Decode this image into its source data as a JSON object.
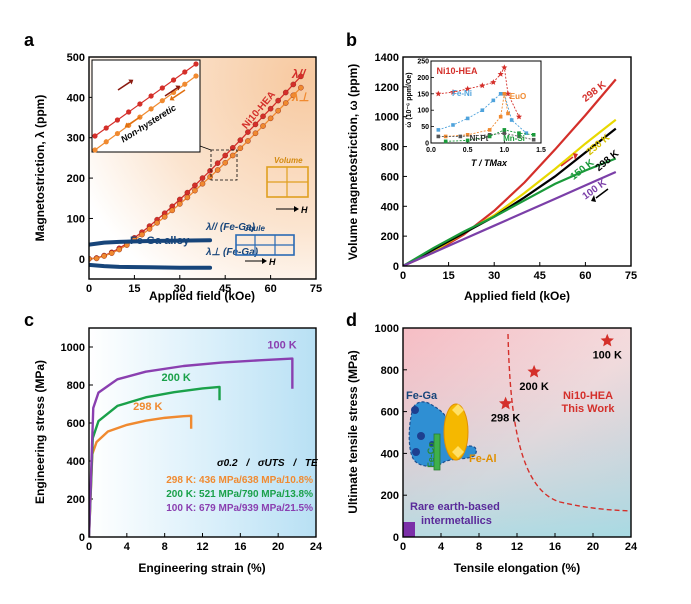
{
  "panels": {
    "a": "a",
    "b": "b",
    "c": "c",
    "d": "d"
  },
  "chart_data": [
    {
      "panel": "a",
      "type": "scatter",
      "xlabel": "Applied field (kOe)",
      "ylabel": "Magnetostriction, λ (ppm)",
      "xlim": [
        0,
        75
      ],
      "ylim": [
        -50,
        500
      ],
      "xticks": [
        "0",
        "15",
        "30",
        "45",
        "60",
        "75"
      ],
      "yticks": [
        "0",
        "100",
        "200",
        "300",
        "400",
        "500"
      ],
      "material_label": "Ni10-HEA",
      "ref_label": "Fe-Ga alloy",
      "inset_label": "Non-hysteretic",
      "volume_label": "Volume",
      "joule_label": "Joule",
      "field_label": "H",
      "series": [
        {
          "name": "λ//",
          "color": "#d42f2a",
          "x": [
            0,
            2.5,
            5,
            7.5,
            10,
            12.5,
            15,
            17.5,
            20,
            22.5,
            25,
            27.5,
            30,
            32.5,
            35,
            37.5,
            40,
            42.5,
            45,
            47.5,
            50,
            52.5,
            55,
            57.5,
            60,
            62.5,
            65,
            67.5,
            70
          ],
          "y": [
            0,
            2,
            8,
            16,
            26,
            38,
            52,
            66,
            81,
            97,
            113,
            130,
            147,
            164,
            182,
            200,
            218,
            237,
            256,
            275,
            294,
            314,
            333,
            353,
            372,
            392,
            412,
            432,
            452
          ]
        },
        {
          "name": "λ⊥",
          "color": "#f08a30",
          "x": [
            0,
            2.5,
            5,
            7.5,
            10,
            12.5,
            15,
            17.5,
            20,
            22.5,
            25,
            27.5,
            30,
            32.5,
            35,
            37.5,
            40,
            42.5,
            45,
            47.5,
            50,
            52.5,
            55,
            57.5,
            60,
            62.5,
            65,
            67.5,
            70
          ],
          "y": [
            0,
            1,
            7,
            14,
            23,
            34,
            47,
            60,
            74,
            89,
            104,
            120,
            136,
            152,
            169,
            186,
            203,
            220,
            238,
            256,
            274,
            292,
            311,
            329,
            348,
            367,
            386,
            405,
            424
          ]
        },
        {
          "name": "λ// (Fe-Ga)",
          "color": "#17457a",
          "x": [
            0,
            5,
            10,
            20,
            30,
            40
          ],
          "y": [
            35,
            40,
            42,
            44,
            45,
            46
          ]
        },
        {
          "name": "λ⊥ (Fe-Ga)",
          "color": "#17457a",
          "x": [
            0,
            5,
            10,
            20,
            30,
            40
          ],
          "y": [
            -15,
            -18,
            -20,
            -21,
            -22,
            -22
          ]
        }
      ]
    },
    {
      "panel": "b",
      "type": "line",
      "xlabel": "Applied field (kOe)",
      "ylabel": "Volume magnetostriction, ω (ppm)",
      "xlim": [
        0,
        75
      ],
      "ylim": [
        0,
        1400
      ],
      "xticks": [
        "0",
        "15",
        "30",
        "45",
        "60",
        "75"
      ],
      "yticks": [
        "0",
        "200",
        "400",
        "600",
        "800",
        "1000",
        "1200",
        "1400"
      ],
      "series": [
        {
          "name": "298 K",
          "label_color": "#d42f2a",
          "color": "#d42f2a",
          "x": [
            0,
            10,
            20,
            30,
            40,
            50,
            60,
            70
          ],
          "y": [
            0,
            90,
            210,
            370,
            560,
            780,
            1010,
            1250
          ]
        },
        {
          "name": "250 K",
          "label_color": "#d6c000",
          "color": "#e8d800",
          "x": [
            0,
            10,
            20,
            30,
            40,
            50,
            60,
            70
          ],
          "y": [
            0,
            100,
            220,
            340,
            490,
            650,
            820,
            980
          ]
        },
        {
          "name": "298 K",
          "label_color": "#000000",
          "color": "#000000",
          "x": [
            0,
            10,
            20,
            30,
            40,
            50,
            60,
            70
          ],
          "y": [
            0,
            110,
            220,
            330,
            460,
            600,
            760,
            920
          ]
        },
        {
          "name": "150 K",
          "label_color": "#1a9a3a",
          "color": "#1a9a3a",
          "x": [
            0,
            10,
            20,
            30,
            40,
            50,
            60,
            70
          ],
          "y": [
            0,
            120,
            230,
            330,
            440,
            550,
            640,
            720
          ]
        },
        {
          "name": "100 K",
          "label_color": "#7b3fa8",
          "color": "#7b3fa8",
          "x": [
            0,
            10,
            20,
            30,
            40,
            50,
            60,
            70
          ],
          "y": [
            0,
            90,
            180,
            270,
            360,
            450,
            540,
            630
          ]
        }
      ],
      "inset": {
        "xlabel": "T / TMax",
        "ylabel": "ώ (10⁻⁶ ppm/Oe)",
        "xticks": [
          "0.0",
          "0.5",
          "1.0",
          "1.5"
        ],
        "yticks": [
          "0",
          "50",
          "100",
          "150",
          "200",
          "250"
        ],
        "xlim": [
          0,
          1.5
        ],
        "ylim": [
          0,
          250
        ],
        "series": [
          {
            "name": "Ni10-HEA",
            "color": "#d42f2a",
            "x": [
              0.1,
              0.3,
              0.5,
              0.7,
              0.85,
              0.95,
              1.0,
              1.05,
              1.2
            ],
            "y": [
              150,
              155,
              165,
              175,
              185,
              210,
              230,
              150,
              80
            ]
          },
          {
            "name": "Fe-Ni",
            "color": "#4fa3dc",
            "x": [
              0.1,
              0.3,
              0.5,
              0.7,
              0.85,
              0.95,
              1.0,
              1.1,
              1.3
            ],
            "y": [
              40,
              55,
              75,
              100,
              130,
              150,
              150,
              70,
              30
            ]
          },
          {
            "name": "EuO",
            "color": "#f08a30",
            "x": [
              0.2,
              0.5,
              0.8,
              0.95,
              1.0,
              1.05
            ],
            "y": [
              20,
              25,
              40,
              80,
              150,
              90
            ]
          },
          {
            "name": "Ni-Pt",
            "color": "#555555",
            "x": [
              0.1,
              0.4,
              0.8,
              1.0,
              1.2,
              1.4
            ],
            "y": [
              20,
              20,
              25,
              30,
              20,
              10
            ]
          },
          {
            "name": "Mn-Si",
            "color": "#1a9a3a",
            "x": [
              0.2,
              0.5,
              0.8,
              1.0,
              1.2,
              1.4
            ],
            "y": [
              5,
              8,
              20,
              40,
              30,
              25
            ]
          }
        ]
      }
    },
    {
      "panel": "c",
      "type": "line",
      "xlabel": "Engineering strain (%)",
      "ylabel": "Engineering stress (MPa)",
      "xlim": [
        0,
        24
      ],
      "ylim": [
        0,
        1100
      ],
      "xticks": [
        "0",
        "4",
        "8",
        "12",
        "16",
        "20",
        "24"
      ],
      "yticks": [
        "0",
        "200",
        "400",
        "600",
        "800",
        "1000"
      ],
      "legend_header": {
        "a": "σ0.2",
        "sep1": "/",
        "b": "σUTS",
        "sep2": "/",
        "c": "TE"
      },
      "series": [
        {
          "name": "298 K",
          "color": "#f08a30",
          "summary": "298 K: 436 MPa/638 MPa/10.8%",
          "x": [
            0,
            0.35,
            0.8,
            2,
            4,
            6,
            8,
            10,
            10.8,
            10.8
          ],
          "y": [
            0,
            436,
            500,
            555,
            590,
            612,
            627,
            636,
            638,
            570
          ]
        },
        {
          "name": "200 K",
          "color": "#1aa14a",
          "summary": "200 K: 521 MPa/790 MPa/13.8%",
          "x": [
            0,
            0.4,
            1,
            3,
            6,
            9,
            12,
            13.8,
            13.8
          ],
          "y": [
            0,
            521,
            610,
            690,
            735,
            762,
            782,
            790,
            720
          ]
        },
        {
          "name": "100 K",
          "color": "#8a3fb0",
          "summary": "100 K: 679 MPa/939 MPa/21.5%",
          "x": [
            0,
            0.45,
            1,
            3,
            6,
            10,
            14,
            18,
            21,
            21.5,
            21.5
          ],
          "y": [
            0,
            679,
            760,
            830,
            870,
            900,
            918,
            930,
            938,
            939,
            780
          ]
        }
      ]
    },
    {
      "panel": "d",
      "type": "scatter",
      "xlabel": "Tensile elongation (%)",
      "ylabel": "Ultimate tensile stress (MPa)",
      "xlim": [
        0,
        24
      ],
      "ylim": [
        0,
        1000
      ],
      "xticks": [
        "0",
        "4",
        "8",
        "12",
        "16",
        "20",
        "24"
      ],
      "yticks": [
        "0",
        "200",
        "400",
        "600",
        "800",
        "1000"
      ],
      "points": [
        {
          "label": "298 K",
          "x": 10.8,
          "y": 638,
          "color": "#d42f2a"
        },
        {
          "label": "200 K",
          "x": 13.8,
          "y": 790,
          "color": "#d42f2a"
        },
        {
          "label": "100 K",
          "x": 21.5,
          "y": 939,
          "color": "#d42f2a"
        }
      ],
      "region_labels": {
        "fe_ga": "Fe-Ga",
        "fe_co": "Fe-Co",
        "fe_al": "Fe-Al",
        "rare_line1": "Rare earth-based",
        "rare_line2": "intermetallics",
        "ni10_line1": "Ni10-HEA",
        "ni10_line2": "This Work"
      }
    }
  ]
}
